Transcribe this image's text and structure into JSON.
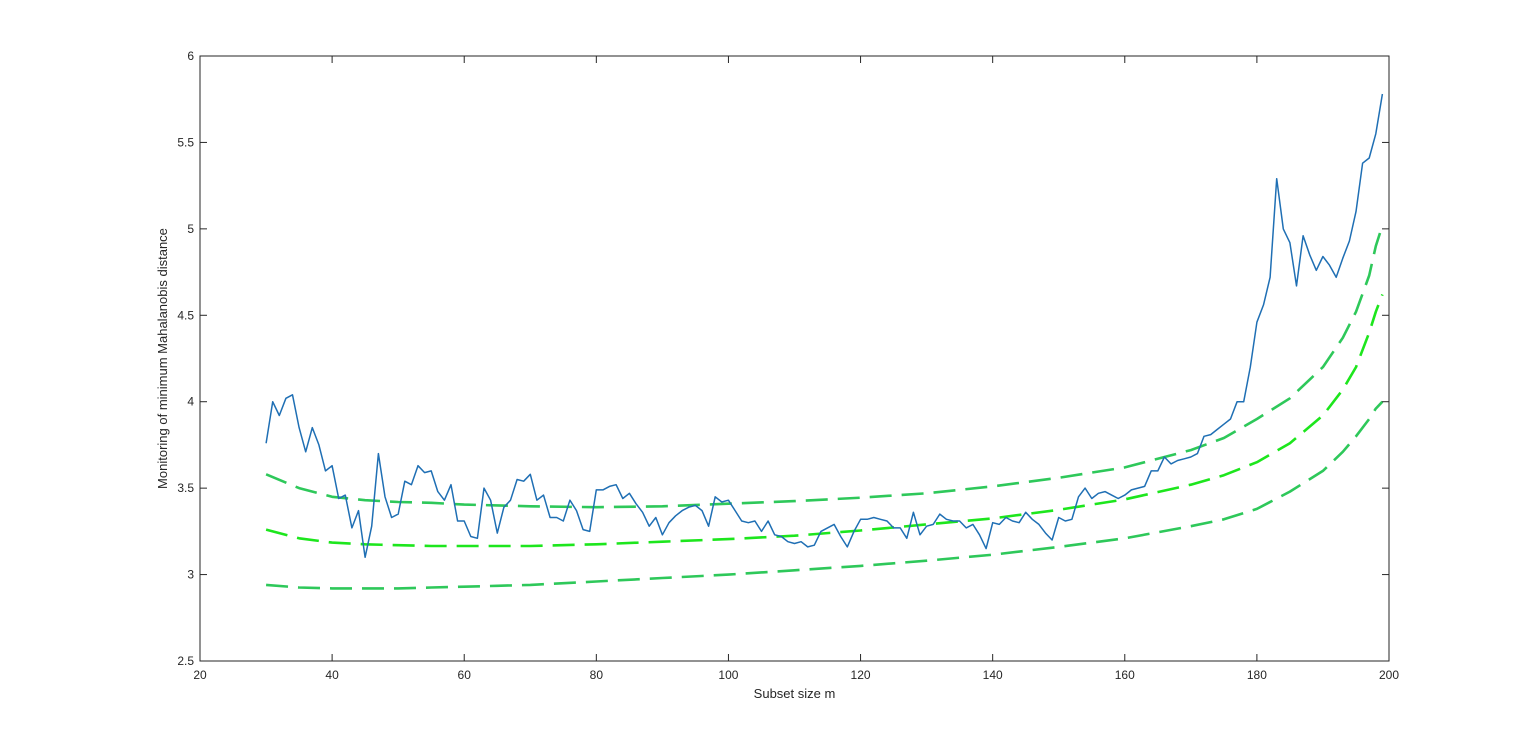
{
  "chart_data": {
    "type": "line",
    "title": "",
    "xlabel": "Subset size m",
    "ylabel": "Monitoring of minimum Mahalanobis distance",
    "xlim": [
      20,
      200
    ],
    "ylim": [
      2.5,
      6
    ],
    "xticks": [
      "20",
      "40",
      "60",
      "80",
      "100",
      "120",
      "140",
      "160",
      "180",
      "200"
    ],
    "yticks": [
      "2.5",
      "3",
      "3.5",
      "4",
      "4.5",
      "5",
      "5.5",
      "6"
    ],
    "grid": false,
    "colors": {
      "observed": "#1f6fb4",
      "envelope_outer": "#2ec85a",
      "envelope_mid": "#1de61d",
      "axes": "#262626"
    },
    "series": [
      {
        "key": "observed",
        "style": "solid",
        "x": [
          30,
          31,
          32,
          33,
          34,
          35,
          36,
          37,
          38,
          39,
          40,
          41,
          42,
          43,
          44,
          45,
          46,
          47,
          48,
          49,
          50,
          51,
          52,
          53,
          54,
          55,
          56,
          57,
          58,
          59,
          60,
          61,
          62,
          63,
          64,
          65,
          66,
          67,
          68,
          69,
          70,
          71,
          72,
          73,
          74,
          75,
          76,
          77,
          78,
          79,
          80,
          81,
          82,
          83,
          84,
          85,
          86,
          87,
          88,
          89,
          90,
          91,
          92,
          93,
          94,
          95,
          96,
          97,
          98,
          99,
          100,
          101,
          102,
          103,
          104,
          105,
          106,
          107,
          108,
          109,
          110,
          111,
          112,
          113,
          114,
          115,
          116,
          117,
          118,
          119,
          120,
          121,
          122,
          123,
          124,
          125,
          126,
          127,
          128,
          129,
          130,
          131,
          132,
          133,
          134,
          135,
          136,
          137,
          138,
          139,
          140,
          141,
          142,
          143,
          144,
          145,
          146,
          147,
          148,
          149,
          150,
          151,
          152,
          153,
          154,
          155,
          156,
          157,
          158,
          159,
          160,
          161,
          162,
          163,
          164,
          165,
          166,
          167,
          168,
          169,
          170,
          171,
          172,
          173,
          174,
          175,
          176,
          177,
          178,
          179,
          180,
          181,
          182,
          183,
          184,
          185,
          186,
          187,
          188,
          189,
          190,
          191,
          192,
          193,
          194,
          195,
          196,
          197,
          198,
          199
        ],
        "y": [
          3.76,
          4.0,
          3.92,
          4.02,
          4.04,
          3.85,
          3.71,
          3.85,
          3.75,
          3.6,
          3.63,
          3.44,
          3.46,
          3.27,
          3.37,
          3.1,
          3.28,
          3.7,
          3.45,
          3.33,
          3.35,
          3.54,
          3.52,
          3.63,
          3.59,
          3.6,
          3.48,
          3.43,
          3.52,
          3.31,
          3.31,
          3.22,
          3.21,
          3.5,
          3.43,
          3.24,
          3.39,
          3.43,
          3.55,
          3.54,
          3.58,
          3.43,
          3.46,
          3.33,
          3.33,
          3.31,
          3.43,
          3.37,
          3.26,
          3.25,
          3.49,
          3.49,
          3.51,
          3.52,
          3.44,
          3.47,
          3.41,
          3.36,
          3.28,
          3.33,
          3.23,
          3.3,
          3.34,
          3.37,
          3.39,
          3.4,
          3.37,
          3.28,
          3.45,
          3.42,
          3.43,
          3.37,
          3.31,
          3.3,
          3.31,
          3.25,
          3.31,
          3.23,
          3.22,
          3.19,
          3.18,
          3.19,
          3.16,
          3.17,
          3.25,
          3.27,
          3.29,
          3.22,
          3.16,
          3.25,
          3.32,
          3.32,
          3.33,
          3.32,
          3.31,
          3.27,
          3.27,
          3.21,
          3.36,
          3.23,
          3.28,
          3.29,
          3.35,
          3.32,
          3.31,
          3.31,
          3.27,
          3.29,
          3.23,
          3.15,
          3.3,
          3.29,
          3.33,
          3.31,
          3.3,
          3.36,
          3.32,
          3.29,
          3.24,
          3.2,
          3.33,
          3.31,
          3.32,
          3.45,
          3.5,
          3.44,
          3.47,
          3.48,
          3.46,
          3.44,
          3.46,
          3.49,
          3.5,
          3.51,
          3.6,
          3.6,
          3.68,
          3.64,
          3.66,
          3.67,
          3.68,
          3.7,
          3.8,
          3.81,
          3.84,
          3.87,
          3.9,
          4.0,
          4.0,
          4.2,
          4.46,
          4.56,
          4.72,
          5.29,
          5.0,
          4.92,
          4.67,
          4.96,
          4.85,
          4.76,
          4.84,
          4.79,
          4.72,
          4.83,
          4.93,
          5.1,
          5.38,
          5.41,
          5.55,
          5.78
        ]
      },
      {
        "key": "envelope_outer",
        "style": "dashed",
        "x": [
          30,
          35,
          40,
          45,
          50,
          55,
          60,
          65,
          70,
          80,
          90,
          100,
          110,
          120,
          130,
          140,
          150,
          160,
          170,
          175,
          180,
          185,
          190,
          193,
          195,
          197,
          198,
          199
        ],
        "y": [
          3.58,
          3.5,
          3.45,
          3.43,
          3.42,
          3.415,
          3.405,
          3.4,
          3.395,
          3.39,
          3.395,
          3.41,
          3.425,
          3.445,
          3.47,
          3.51,
          3.56,
          3.62,
          3.72,
          3.79,
          3.9,
          4.02,
          4.2,
          4.37,
          4.52,
          4.73,
          4.9,
          5.02
        ]
      },
      {
        "key": "envelope_mid",
        "style": "dashed",
        "x": [
          30,
          35,
          40,
          45,
          50,
          55,
          60,
          65,
          70,
          80,
          90,
          100,
          110,
          120,
          130,
          140,
          150,
          160,
          170,
          175,
          180,
          185,
          190,
          193,
          195,
          197,
          198,
          199
        ],
        "y": [
          3.26,
          3.21,
          3.185,
          3.175,
          3.17,
          3.165,
          3.165,
          3.165,
          3.165,
          3.175,
          3.19,
          3.205,
          3.225,
          3.255,
          3.29,
          3.325,
          3.375,
          3.435,
          3.52,
          3.575,
          3.65,
          3.76,
          3.92,
          4.07,
          4.2,
          4.4,
          4.52,
          4.62
        ]
      },
      {
        "key": "envelope_outer",
        "style": "dashed",
        "x": [
          30,
          35,
          40,
          45,
          50,
          55,
          60,
          65,
          70,
          80,
          90,
          100,
          110,
          120,
          130,
          140,
          150,
          160,
          170,
          175,
          180,
          185,
          190,
          193,
          195,
          197,
          198,
          199
        ],
        "y": [
          2.94,
          2.925,
          2.92,
          2.92,
          2.92,
          2.925,
          2.93,
          2.935,
          2.94,
          2.96,
          2.98,
          3.0,
          3.025,
          3.05,
          3.08,
          3.115,
          3.16,
          3.21,
          3.28,
          3.32,
          3.38,
          3.48,
          3.6,
          3.71,
          3.8,
          3.9,
          3.96,
          4.0
        ]
      }
    ]
  }
}
